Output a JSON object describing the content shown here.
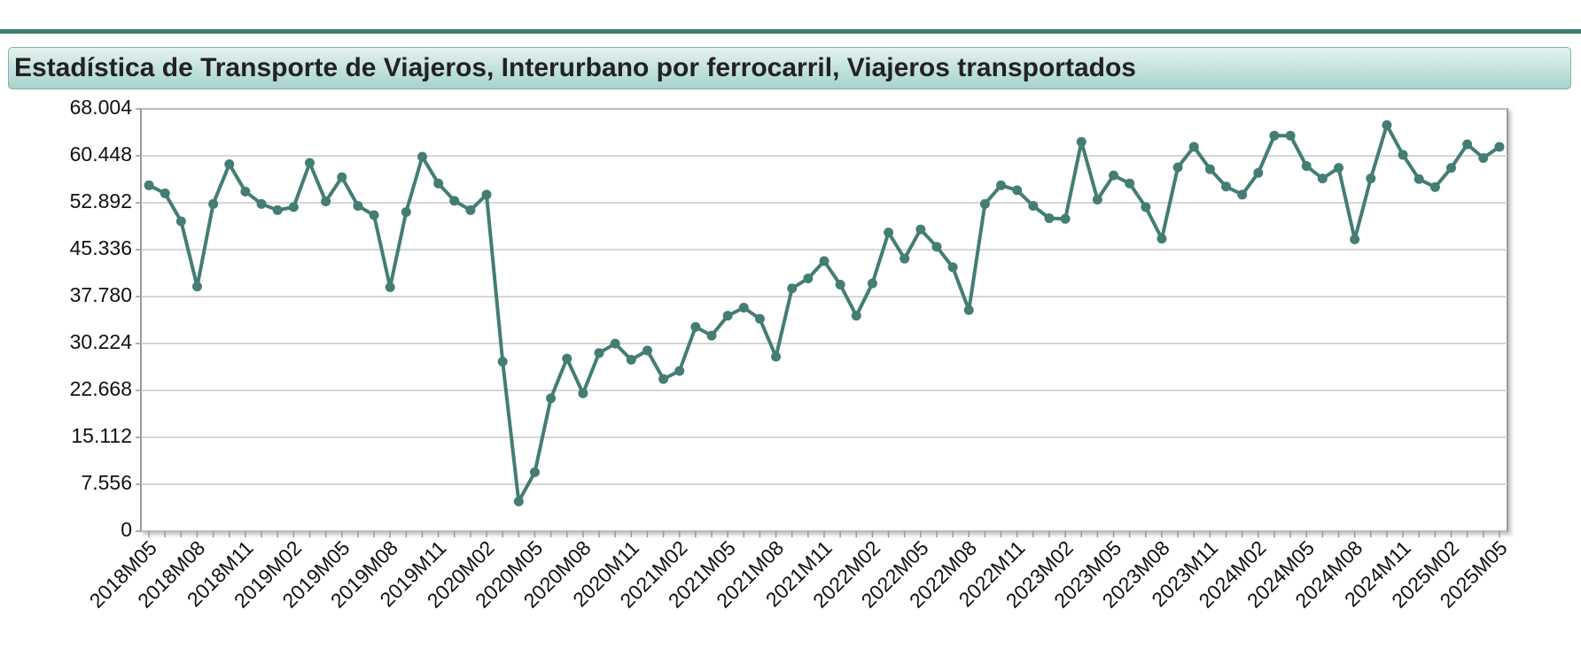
{
  "chart_data": {
    "type": "line",
    "title": "Estadística de Transporte de Viajeros, Interurbano por ferrocarril, Viajeros transportados",
    "categories": [
      "2018M05",
      null,
      null,
      "2018M08",
      null,
      null,
      "2018M11",
      null,
      null,
      "2019M02",
      null,
      null,
      "2019M05",
      null,
      null,
      "2019M08",
      null,
      null,
      "2019M11",
      null,
      null,
      "2020M02",
      null,
      null,
      "2020M05",
      null,
      null,
      "2020M08",
      null,
      null,
      "2020M11",
      null,
      null,
      "2021M02",
      null,
      null,
      "2021M05",
      null,
      null,
      "2021M08",
      null,
      null,
      "2021M11",
      null,
      null,
      "2022M02",
      null,
      null,
      "2022M05",
      null,
      null,
      "2022M08",
      null,
      null,
      "2022M11",
      null,
      null,
      "2023M02",
      null,
      null,
      "2023M05",
      null,
      null,
      "2023M08",
      null,
      null,
      "2023M11",
      null,
      null,
      "2024M02",
      null,
      null,
      "2024M05",
      null,
      null,
      "2024M08",
      null,
      null,
      "2024M11",
      null,
      null,
      "2025M02",
      null,
      null,
      "2025M05"
    ],
    "values": [
      55.7,
      54.4,
      49.9,
      39.4,
      52.7,
      59.1,
      54.7,
      52.7,
      51.7,
      52.2,
      59.3,
      53.1,
      57.0,
      52.4,
      50.9,
      39.3,
      51.4,
      60.3,
      56.0,
      53.2,
      51.7,
      54.2,
      27.3,
      4.8,
      9.5,
      21.4,
      27.8,
      22.2,
      28.7,
      30.2,
      27.6,
      29.1,
      24.5,
      25.8,
      32.9,
      31.5,
      34.7,
      36.0,
      34.2,
      28.1,
      39.1,
      40.7,
      43.5,
      39.7,
      34.7,
      39.9,
      48.1,
      43.9,
      48.6,
      45.8,
      42.5,
      35.6,
      52.7,
      55.7,
      54.9,
      52.4,
      50.4,
      50.3,
      62.7,
      53.4,
      57.3,
      56.0,
      52.2,
      47.1,
      58.6,
      61.9,
      58.3,
      55.5,
      54.2,
      57.7,
      63.7,
      63.7,
      58.8,
      56.8,
      58.5,
      47.0,
      56.8,
      65.4,
      60.6,
      56.7,
      55.4,
      58.5,
      62.3,
      60.1,
      61.9
    ],
    "color": "#437d74",
    "ylim": [
      0,
      68.004
    ],
    "yticks": [
      0,
      7.556,
      15.112,
      22.668,
      30.224,
      {
        "value": 37.78,
        "label": "37.780"
      },
      45.336,
      52.892,
      60.448,
      68.004
    ],
    "grid": true
  }
}
